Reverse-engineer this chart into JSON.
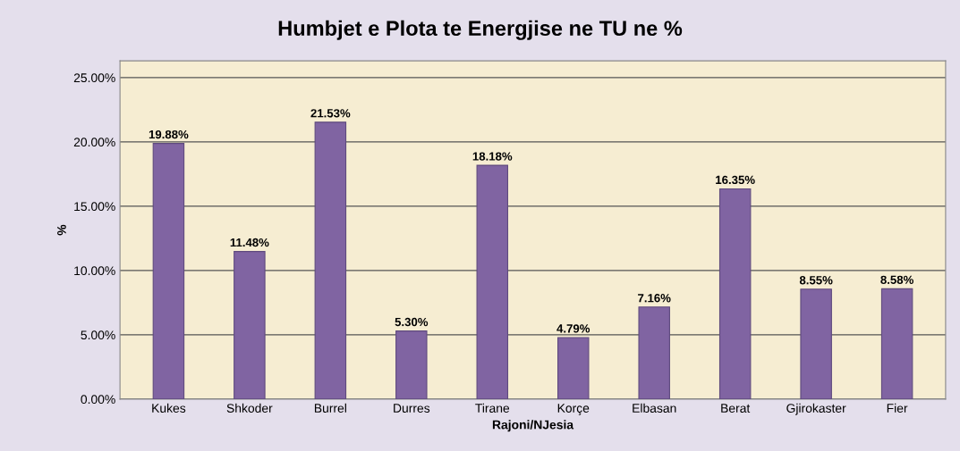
{
  "chart_data": {
    "type": "bar",
    "title": "Humbjet e Plota te Energjise ne TU ne %",
    "xlabel": "Rajoni/NJesia",
    "ylabel": "%",
    "categories": [
      "Kukes",
      "Shkoder",
      "Burrel",
      "Durres",
      "Tirane",
      "Korçe",
      "Elbasan",
      "Berat",
      "Gjirokaster",
      "Fier"
    ],
    "values": [
      19.88,
      11.48,
      21.53,
      5.3,
      18.18,
      4.79,
      7.16,
      16.35,
      8.55,
      8.58
    ],
    "value_labels": [
      "19.88%",
      "11.48%",
      "21.53%",
      "5.30%",
      "18.18%",
      "4.79%",
      "7.16%",
      "16.35%",
      "8.55%",
      "8.58%"
    ],
    "color": "#8064a2",
    "ylim": [
      0,
      26.3
    ],
    "yticks": [
      {
        "value": 0,
        "label": "0.00%"
      },
      {
        "value": 5,
        "label": "5.00%"
      },
      {
        "value": 10,
        "label": "10.00%"
      },
      {
        "value": 15,
        "label": "15.00%"
      },
      {
        "value": 20,
        "label": "20.00%"
      },
      {
        "value": 25,
        "label": "25.00%"
      }
    ],
    "grid": "y"
  }
}
